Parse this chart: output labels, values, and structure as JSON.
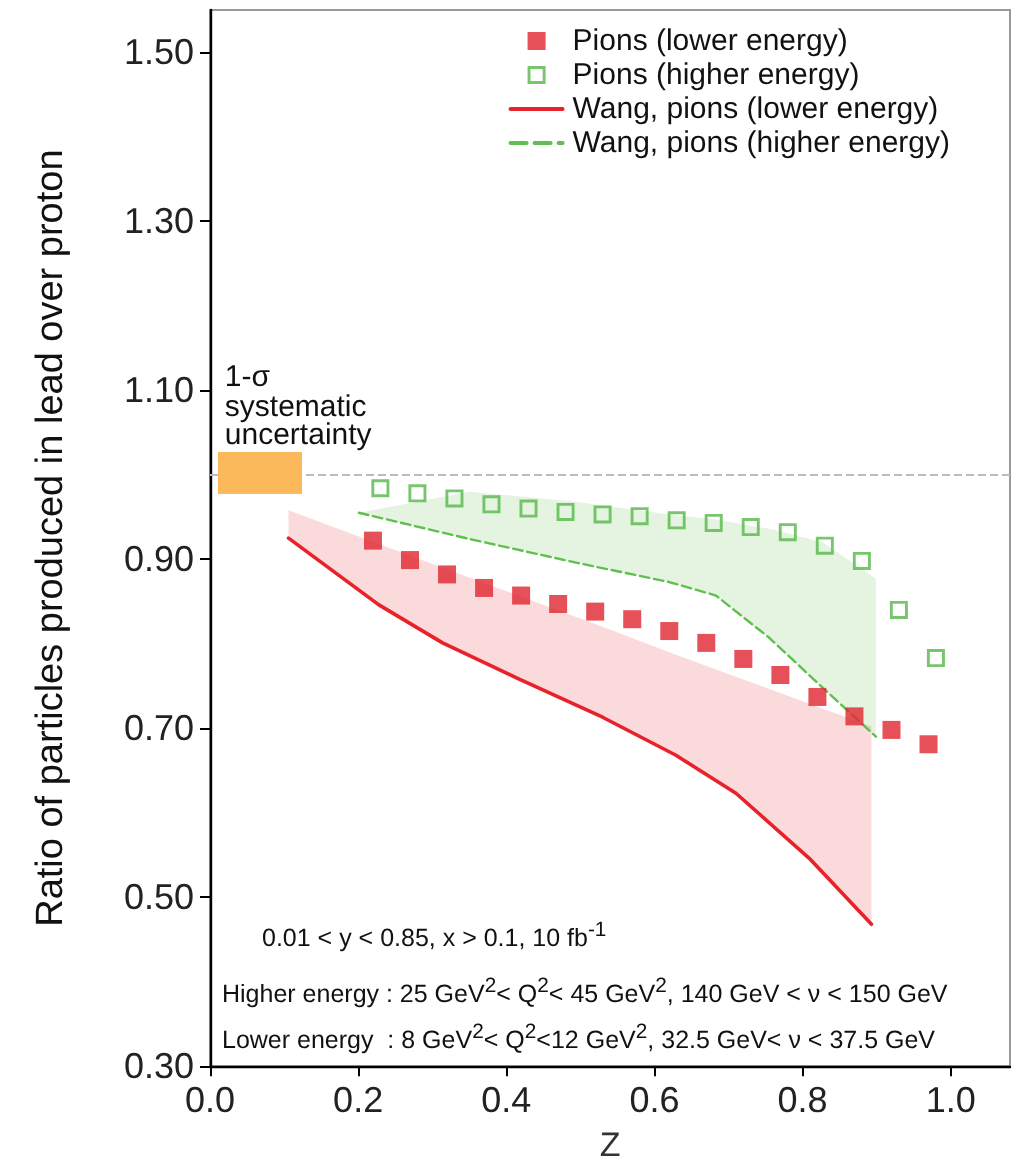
{
  "chart_data": {
    "type": "scatter",
    "xlabel": "Z",
    "ylabel": "Ratio of particles produced in lead over proton",
    "xlim": [
      0,
      1.08
    ],
    "ylim": [
      0.3,
      1.55
    ],
    "xticks": [
      {
        "value": 0,
        "label": "0.0"
      },
      {
        "value": 0.2,
        "label": "0.2"
      },
      {
        "value": 0.4,
        "label": "0.4"
      },
      {
        "value": 0.6,
        "label": "0.6"
      },
      {
        "value": 0.8,
        "label": "0.8"
      },
      {
        "value": 1,
        "label": "1.0"
      }
    ],
    "yticks": [
      {
        "value": 0.3,
        "label": "0.30"
      },
      {
        "value": 0.5,
        "label": "0.50"
      },
      {
        "value": 0.7,
        "label": "0.70"
      },
      {
        "value": 0.9,
        "label": "0.90"
      },
      {
        "value": 1.1,
        "label": "1.10"
      },
      {
        "value": 1.3,
        "label": "1.30"
      },
      {
        "value": 1.5,
        "label": "1.50"
      }
    ],
    "grid": false,
    "legend": "top right",
    "marker": "square",
    "series": [
      {
        "name": "Pions (lower energy)",
        "color": "#e0262f",
        "x": [
          0.22,
          0.27,
          0.32,
          0.37,
          0.42,
          0.47,
          0.52,
          0.57,
          0.62,
          0.67,
          0.72,
          0.77,
          0.82,
          0.87,
          0.92,
          0.97
        ],
        "values": [
          0.922,
          0.899,
          0.882,
          0.866,
          0.857,
          0.847,
          0.838,
          0.829,
          0.815,
          0.801,
          0.782,
          0.763,
          0.737,
          0.714,
          0.698,
          0.681
        ]
      },
      {
        "name": "Pions (higher energy)",
        "color": "#55b848",
        "x": [
          0.23,
          0.28,
          0.33,
          0.38,
          0.43,
          0.48,
          0.53,
          0.58,
          0.63,
          0.68,
          0.73,
          0.78,
          0.83,
          0.88,
          0.93,
          0.98
        ],
        "values": [
          0.984,
          0.978,
          0.972,
          0.965,
          0.96,
          0.956,
          0.953,
          0.951,
          0.946,
          0.943,
          0.938,
          0.932,
          0.916,
          0.898,
          0.84,
          0.783
        ]
      },
      {
        "name": "Wang, pions (lower energy)",
        "type": "line",
        "color": "#e8222a",
        "line_style": "solid",
        "marker": "none",
        "x": [
          0.106,
          0.228,
          0.314,
          0.413,
          0.53,
          0.629,
          0.71,
          0.809,
          0.893
        ],
        "values": [
          0.925,
          0.846,
          0.801,
          0.76,
          0.713,
          0.668,
          0.623,
          0.546,
          0.468
        ],
        "lower": [
          0.925,
          0.846,
          0.801,
          0.76,
          0.713,
          0.668,
          0.623,
          0.546,
          0.468
        ],
        "upper": [
          0.958,
          0.918,
          0.89,
          0.858,
          0.82,
          0.787,
          0.761,
          0.729,
          0.702
        ]
      },
      {
        "name": "Wang, pions (higher energy)",
        "type": "line",
        "color": "#5fbf4f",
        "line_style": "dashed",
        "marker": "none",
        "x": [
          0.201,
          0.35,
          0.494,
          0.62,
          0.683,
          0.755,
          0.827,
          0.899
        ],
        "values": [
          0.955,
          0.924,
          0.896,
          0.873,
          0.857,
          0.807,
          0.748,
          0.69
        ],
        "lower": [
          0.955,
          0.924,
          0.896,
          0.873,
          0.857,
          0.807,
          0.748,
          0.69
        ],
        "upper": [
          0.955,
          0.98,
          0.968,
          0.953,
          0.947,
          0.936,
          0.92,
          0.877
        ]
      }
    ],
    "ref_lines": [
      {
        "axis": "y",
        "value": 1.0,
        "color": "#bbbbbb",
        "line_style": "dashed"
      }
    ],
    "annotations": [
      "1-σ systematic uncertainty",
      "0.01 < y < 0.85, x > 0.1, 10 fb$^{-1}$",
      "Higher energy : 25 GeV$^{2}$< Q$^{2}$< 45 GeV$^{2}$, 140 GeV < ν < 150 GeV",
      "Lower energy  : 8 GeV$^{2}$< Q$^{2}$<12 GeV$^{2}$, 32.5 GeV< ν < 37.5 GeV"
    ]
  }
}
